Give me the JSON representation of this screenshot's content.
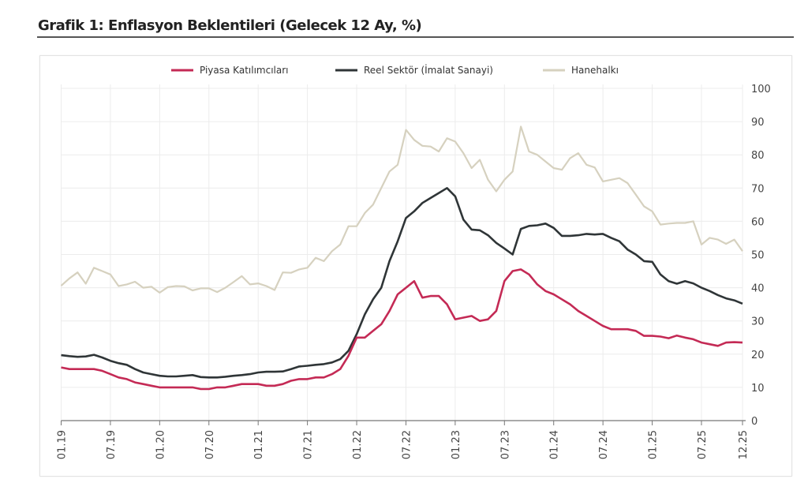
{
  "header": {
    "title": "Grafik 1: Enflasyon Beklentileri (Gelecek 12 Ay, %)"
  },
  "chart_data": {
    "type": "line",
    "title": "Grafik 1: Enflasyon Beklentileri (Gelecek 12 Ay, %)",
    "xlabel": "",
    "ylabel": "",
    "x_start": "01.19",
    "x_end": "12.25",
    "x_frequency": "monthly",
    "x_ticks": [
      "01.19",
      "07.19",
      "01.20",
      "07.20",
      "01.21",
      "07.21",
      "01.22",
      "07.22",
      "01.23",
      "07.23",
      "01.24",
      "07.24",
      "01.25",
      "07.25",
      "12.25"
    ],
    "y_ticks": [
      0,
      10,
      20,
      30,
      40,
      50,
      60,
      70,
      80,
      90,
      100
    ],
    "ylim": [
      0,
      100
    ],
    "y_axis_side": "right",
    "grid": true,
    "legend_position": "top",
    "series": [
      {
        "name": "Piyasa Katılımcıları",
        "color": "#c42a55",
        "values": [
          16,
          15.5,
          15.5,
          15.5,
          15.5,
          15,
          14,
          13,
          12.5,
          11.5,
          11,
          10.5,
          10,
          10,
          10,
          10,
          10,
          9.5,
          9.5,
          10,
          10,
          10.5,
          11,
          11,
          11,
          10.5,
          10.5,
          11,
          12,
          12.5,
          12.5,
          13,
          13,
          14,
          15.5,
          19.5,
          25,
          25,
          27,
          29,
          33,
          38,
          40,
          42,
          37,
          37.5,
          37.5,
          35,
          30.5,
          31,
          31.5,
          30,
          30.5,
          33,
          42,
          45,
          45.5,
          44,
          41,
          39,
          38,
          36.5,
          35,
          33,
          31.5,
          30,
          28.5,
          27.5,
          27.5,
          27.5,
          27,
          25.5,
          25.5,
          25.3,
          24.8,
          25.6,
          25,
          24.5,
          23.5,
          23,
          22.5,
          23.5,
          23.6,
          23.5
        ]
      },
      {
        "name": "Reel Sektör (İmalat Sanayi)",
        "color": "#2f3537",
        "values": [
          19.7,
          19.4,
          19.2,
          19.3,
          19.8,
          19,
          18,
          17.3,
          16.8,
          15.5,
          14.5,
          14,
          13.5,
          13.3,
          13.3,
          13.5,
          13.7,
          13.1,
          13,
          13,
          13.2,
          13.5,
          13.7,
          14,
          14.5,
          14.7,
          14.7,
          14.8,
          15.5,
          16.3,
          16.5,
          16.8,
          17,
          17.5,
          18.5,
          21,
          26,
          32,
          36.5,
          40,
          48,
          54,
          61,
          63,
          65.5,
          67,
          68.5,
          70,
          67.5,
          60.5,
          57.5,
          57.3,
          55.8,
          53.5,
          51.8,
          50,
          57.7,
          58.6,
          58.8,
          59.3,
          58,
          55.6,
          55.6,
          55.8,
          56.2,
          56,
          56.2,
          55,
          54,
          51.5,
          50,
          48,
          47.8,
          44,
          42,
          41.2,
          42,
          41.3,
          40,
          39,
          37.8,
          36.8,
          36.2,
          35.2
        ]
      },
      {
        "name": "Hanehalkı",
        "color": "#d6d1bf",
        "values": [
          40.6,
          42.8,
          44.6,
          41.2,
          46,
          45,
          44,
          40.5,
          41,
          41.8,
          40,
          40.3,
          38.5,
          40.2,
          40.5,
          40.4,
          39.2,
          39.8,
          39.8,
          38.7,
          40,
          41.7,
          43.5,
          41,
          41.3,
          40.5,
          39.3,
          44.6,
          44.5,
          45.5,
          46,
          49,
          48,
          51,
          53,
          58.5,
          58.5,
          62.5,
          65,
          70,
          75,
          77,
          87.5,
          84.5,
          82.7,
          82.5,
          81,
          85,
          84,
          80.5,
          76,
          78.5,
          72.5,
          69,
          72.5,
          75,
          88.5,
          81,
          80,
          78,
          76,
          75.5,
          79,
          80.5,
          77,
          76.2,
          72,
          72.5,
          73,
          71.5,
          68,
          64.5,
          63,
          59,
          59.3,
          59.5,
          59.5,
          60,
          53,
          55,
          54.5,
          53.2,
          54.5,
          51
        ]
      }
    ]
  }
}
